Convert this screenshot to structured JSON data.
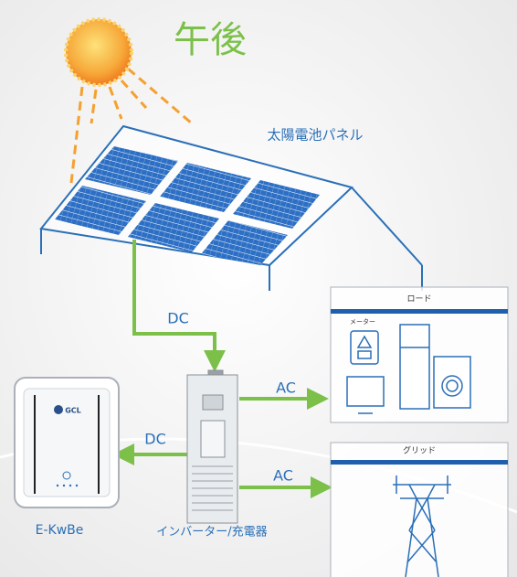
{
  "title": "午後",
  "panel": {
    "label": "太陽電池パネル"
  },
  "connections": [
    {
      "label": "DC"
    },
    {
      "label": "AC"
    },
    {
      "label": "DC"
    },
    {
      "label": "AC"
    }
  ],
  "load": {
    "title": "ロード",
    "meter": "メーター"
  },
  "grid": {
    "title": "グリッド"
  },
  "battery": {
    "brand": "GCL",
    "label": "E-KwBe"
  },
  "inverter": {
    "label": "インバーター/充電器"
  }
}
